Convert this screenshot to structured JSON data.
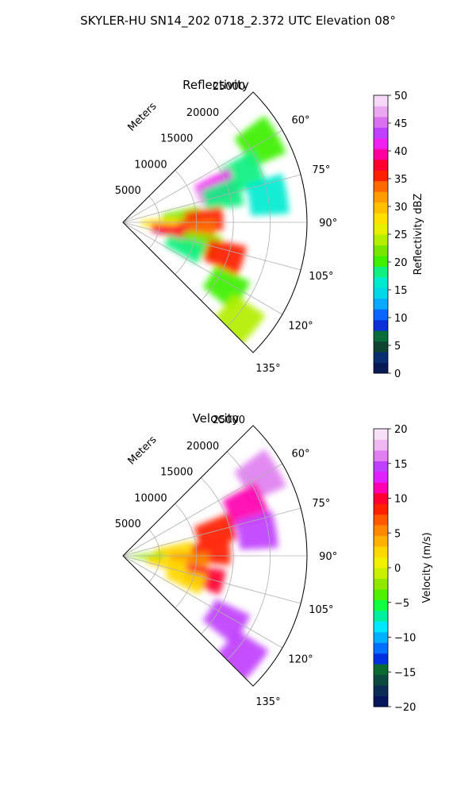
{
  "figure": {
    "title": "SKYLER-HU  SN14_202  0718_2.372 UTC Elevation 08°"
  },
  "chart_data": [
    {
      "type": "heatmap",
      "subtype": "polar-sector (radar PPI)",
      "title": "Reflectivity",
      "radial_axis_label": "Meters",
      "radial_ticks": [
        5000,
        10000,
        15000,
        20000,
        25000
      ],
      "radial_tick_labels": [
        "5000",
        "10000",
        "15000",
        "20000",
        "25000"
      ],
      "rlim": [
        0,
        25000
      ],
      "theta_ticks_deg": [
        60,
        75,
        90,
        105,
        120,
        135
      ],
      "theta_tick_labels": [
        "60°",
        "75°",
        "90°",
        "105°",
        "120°",
        "135°"
      ],
      "theta_range_deg": [
        45,
        135
      ],
      "grid": true,
      "colorbar": {
        "label": "Reflectivity dBZ",
        "range": [
          0,
          50
        ],
        "ticks": [
          0,
          5,
          10,
          15,
          20,
          25,
          30,
          35,
          40,
          45,
          50
        ],
        "tick_labels": [
          "0",
          "5",
          "10",
          "15",
          "20",
          "25",
          "30",
          "35",
          "40",
          "45",
          "50"
        ],
        "colormap": [
          "#061a55",
          "#0a2f70",
          "#0f4530",
          "#0a6b3a",
          "#0b30d8",
          "#0a66ff",
          "#0aa8ff",
          "#00d8e8",
          "#00ead0",
          "#10f080",
          "#3ef000",
          "#78e600",
          "#b4ee00",
          "#e8f000",
          "#ffe000",
          "#ffc000",
          "#ff9c00",
          "#ff6a00",
          "#ff2000",
          "#ff0030",
          "#ff00a0",
          "#f020f0",
          "#c040ff",
          "#d870f0",
          "#eaa8f0",
          "#f6d8f8"
        ]
      },
      "cells": [
        {
          "az": 60,
          "r": 21500,
          "dbz": 20
        },
        {
          "az": 68,
          "r": 17500,
          "dbz": 18
        },
        {
          "az": 70,
          "r": 13500,
          "dbz": 42
        },
        {
          "az": 75,
          "r": 14000,
          "dbz": 19
        },
        {
          "az": 80,
          "r": 20000,
          "dbz": 17
        },
        {
          "az": 85,
          "r": 8000,
          "dbz": 22
        },
        {
          "az": 88,
          "r": 11000,
          "dbz": 36
        },
        {
          "az": 92,
          "r": 5000,
          "dbz": 28
        },
        {
          "az": 95,
          "r": 10000,
          "dbz": 33
        },
        {
          "az": 100,
          "r": 6500,
          "dbz": 38
        },
        {
          "az": 105,
          "r": 11000,
          "dbz": 22
        },
        {
          "az": 108,
          "r": 14500,
          "dbz": 36
        },
        {
          "az": 112,
          "r": 9000,
          "dbz": 18
        },
        {
          "az": 122,
          "r": 16500,
          "dbz": 21
        },
        {
          "az": 130,
          "r": 20500,
          "dbz": 24
        }
      ]
    },
    {
      "type": "heatmap",
      "subtype": "polar-sector (radar PPI)",
      "title": "Velocity",
      "radial_axis_label": "Meters",
      "radial_ticks": [
        5000,
        10000,
        15000,
        20000,
        25000
      ],
      "radial_tick_labels": [
        "5000",
        "10000",
        "15000",
        "20000",
        "25000"
      ],
      "rlim": [
        0,
        25000
      ],
      "theta_ticks_deg": [
        60,
        75,
        90,
        105,
        120,
        135
      ],
      "theta_tick_labels": [
        "60°",
        "75°",
        "90°",
        "105°",
        "120°",
        "135°"
      ],
      "theta_range_deg": [
        45,
        135
      ],
      "grid": true,
      "colorbar": {
        "label": "Velocity (m/s)",
        "range": [
          -20,
          20
        ],
        "ticks": [
          -20,
          -15,
          -10,
          -5,
          0,
          5,
          10,
          15,
          20
        ],
        "tick_labels": [
          "−20",
          "−15",
          "−10",
          "−5",
          "0",
          "5",
          "10",
          "15",
          "20"
        ],
        "colormap": [
          "#06145a",
          "#0a2c55",
          "#0b4a3c",
          "#0a6a30",
          "#0030e0",
          "#0070ff",
          "#00b0ff",
          "#00e8ff",
          "#00f0a0",
          "#10ff40",
          "#50f000",
          "#90e800",
          "#c8f000",
          "#f0f000",
          "#ffd800",
          "#ffb000",
          "#ff8800",
          "#ff5a00",
          "#ff2000",
          "#ff0030",
          "#ff00b0",
          "#e020ff",
          "#c040ff",
          "#e080f0",
          "#f0b8f0",
          "#f8e0f8"
        ]
      },
      "cells": [
        {
          "az": 60,
          "r": 21500,
          "vel": 16
        },
        {
          "az": 68,
          "r": 18000,
          "vel": 11
        },
        {
          "az": 75,
          "r": 13000,
          "vel": 9
        },
        {
          "az": 80,
          "r": 18500,
          "vel": 15
        },
        {
          "az": 85,
          "r": 7000,
          "vel": 3
        },
        {
          "az": 88,
          "r": 12000,
          "vel": 9
        },
        {
          "az": 92,
          "r": 3000,
          "vel": -3
        },
        {
          "az": 95,
          "r": 9000,
          "vel": 5
        },
        {
          "az": 100,
          "r": 6000,
          "vel": 2
        },
        {
          "az": 105,
          "r": 11500,
          "vel": 10
        },
        {
          "az": 110,
          "r": 9000,
          "vel": 2
        },
        {
          "az": 122,
          "r": 16500,
          "vel": 14
        },
        {
          "az": 130,
          "r": 21000,
          "vel": 15
        }
      ]
    }
  ]
}
